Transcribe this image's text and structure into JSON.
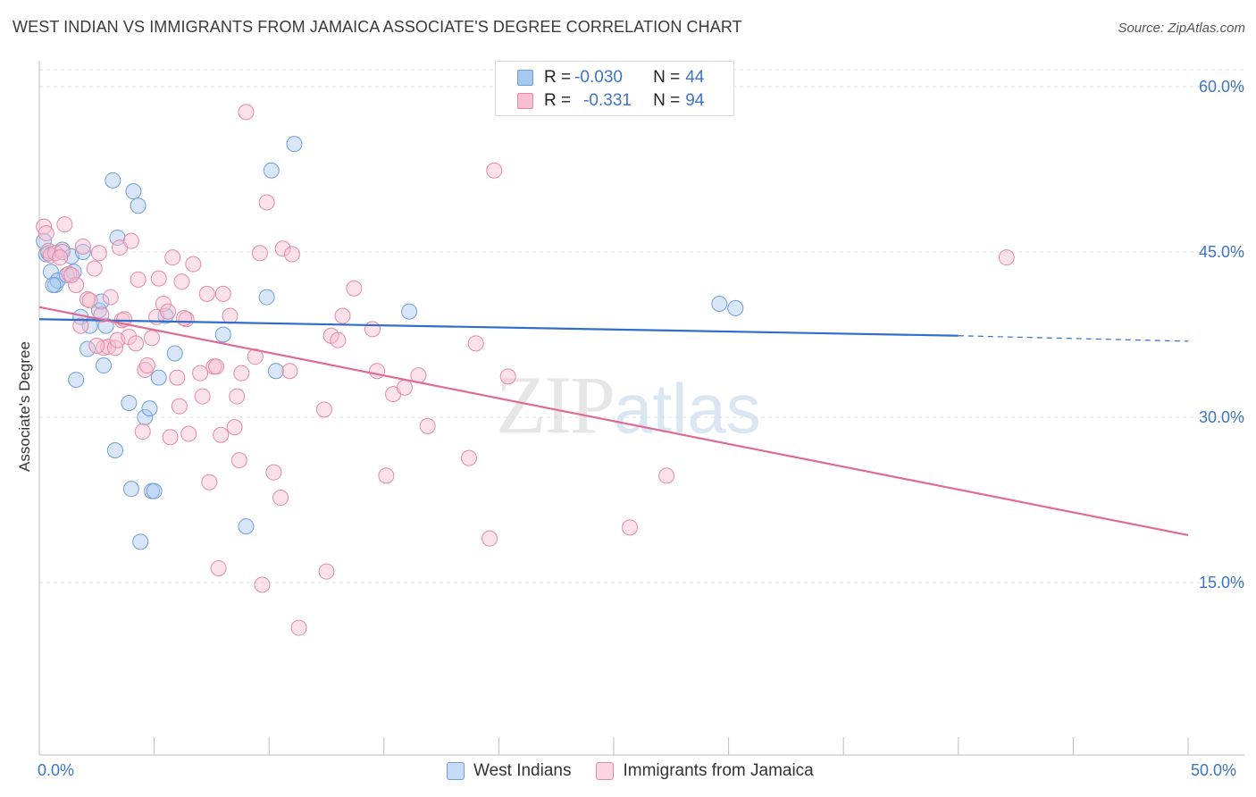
{
  "header": {
    "title": "WEST INDIAN VS IMMIGRANTS FROM JAMAICA ASSOCIATE'S DEGREE CORRELATION CHART",
    "source": "Source: ZipAtlas.com"
  },
  "watermark": {
    "zip": "ZIP",
    "atlas": "atlas"
  },
  "legend": {
    "rows": [
      {
        "r_label": "R = ",
        "r_value": "-0.030",
        "n_label": "N = ",
        "n_value": "44",
        "color": "#a9c8ef",
        "border": "#6f9fd8"
      },
      {
        "r_label": "R = ",
        "r_value": "-0.331",
        "n_label": "N = ",
        "n_value": "94",
        "color": "#f7bfd0",
        "border": "#e48aa7"
      }
    ]
  },
  "bottom_legend": {
    "west_indians": "West Indians",
    "jamaica": "Immigrants from Jamaica"
  },
  "chart_data": {
    "type": "scatter",
    "title": "WEST INDIAN VS IMMIGRANTS FROM JAMAICA ASSOCIATE'S DEGREE CORRELATION CHART",
    "xlabel": "",
    "ylabel": "Associate's Degree",
    "xlim": [
      0,
      50
    ],
    "ylim": [
      0,
      62
    ],
    "x_tick_labels": [
      "0.0%",
      "50.0%"
    ],
    "y_ticks": [
      15,
      30,
      45,
      60
    ],
    "y_tick_labels": [
      "15.0%",
      "30.0%",
      "45.0%",
      "60.0%"
    ],
    "grid": true,
    "legend_position": "top-center",
    "series": [
      {
        "name": "West Indians",
        "color": "#a9c8ef",
        "stroke": "#6f9fd8",
        "trend": {
          "x": [
            0,
            40
          ],
          "y": [
            38.9,
            37.4
          ],
          "extended_to": [
            50,
            36.9
          ],
          "color": "#2f6fcc"
        },
        "points": [
          [
            0.2,
            46.0
          ],
          [
            0.3,
            44.8
          ],
          [
            0.5,
            43.2
          ],
          [
            0.7,
            42.0
          ],
          [
            0.8,
            42.4
          ],
          [
            1.0,
            45.2
          ],
          [
            1.2,
            42.9
          ],
          [
            1.4,
            44.6
          ],
          [
            1.5,
            43.2
          ],
          [
            1.6,
            33.4
          ],
          [
            1.8,
            39.1
          ],
          [
            1.9,
            45.0
          ],
          [
            2.1,
            36.2
          ],
          [
            2.2,
            38.3
          ],
          [
            2.6,
            39.7
          ],
          [
            2.7,
            40.5
          ],
          [
            2.8,
            34.7
          ],
          [
            2.9,
            38.3
          ],
          [
            3.2,
            51.5
          ],
          [
            3.3,
            27.0
          ],
          [
            3.4,
            46.3
          ],
          [
            3.9,
            31.3
          ],
          [
            4.0,
            23.5
          ],
          [
            4.1,
            50.5
          ],
          [
            4.3,
            49.2
          ],
          [
            4.4,
            18.7
          ],
          [
            4.6,
            30.0
          ],
          [
            4.8,
            30.8
          ],
          [
            4.9,
            23.3
          ],
          [
            5.0,
            23.3
          ],
          [
            5.2,
            33.6
          ],
          [
            5.5,
            39.2
          ],
          [
            5.9,
            35.8
          ],
          [
            8.0,
            37.5
          ],
          [
            9.0,
            20.1
          ],
          [
            9.9,
            40.9
          ],
          [
            10.3,
            34.2
          ],
          [
            10.1,
            52.4
          ],
          [
            11.1,
            54.8
          ],
          [
            16.1,
            39.6
          ],
          [
            29.6,
            40.3
          ],
          [
            30.3,
            39.9
          ],
          [
            0.4,
            44.9
          ],
          [
            0.6,
            42.0
          ]
        ]
      },
      {
        "name": "Immigrants from Jamaica",
        "color": "#f7bfd0",
        "stroke": "#e48aa7",
        "trend": {
          "x": [
            0,
            50
          ],
          "y": [
            40.0,
            19.3
          ],
          "color": "#e06b95"
        },
        "points": [
          [
            0.2,
            47.3
          ],
          [
            0.3,
            46.7
          ],
          [
            0.4,
            45.1
          ],
          [
            0.5,
            44.7
          ],
          [
            0.7,
            44.9
          ],
          [
            1.1,
            47.5
          ],
          [
            1.3,
            43.0
          ],
          [
            1.6,
            42.0
          ],
          [
            1.8,
            38.3
          ],
          [
            1.9,
            45.5
          ],
          [
            2.1,
            40.7
          ],
          [
            2.2,
            40.6
          ],
          [
            2.4,
            43.5
          ],
          [
            2.6,
            44.9
          ],
          [
            2.7,
            39.3
          ],
          [
            2.8,
            36.3
          ],
          [
            3.0,
            36.4
          ],
          [
            3.1,
            40.9
          ],
          [
            3.3,
            36.3
          ],
          [
            3.4,
            37.0
          ],
          [
            3.5,
            45.4
          ],
          [
            3.6,
            38.8
          ],
          [
            3.9,
            37.3
          ],
          [
            4.0,
            46.0
          ],
          [
            4.2,
            36.7
          ],
          [
            4.3,
            42.5
          ],
          [
            4.5,
            28.7
          ],
          [
            4.6,
            34.3
          ],
          [
            4.7,
            34.7
          ],
          [
            5.1,
            39.1
          ],
          [
            5.2,
            42.6
          ],
          [
            5.4,
            40.3
          ],
          [
            5.6,
            39.6
          ],
          [
            5.7,
            28.2
          ],
          [
            5.8,
            44.5
          ],
          [
            6.0,
            33.6
          ],
          [
            6.1,
            31.0
          ],
          [
            6.2,
            42.3
          ],
          [
            6.4,
            38.9
          ],
          [
            6.5,
            28.5
          ],
          [
            6.7,
            43.9
          ],
          [
            7.0,
            34.0
          ],
          [
            7.1,
            31.9
          ],
          [
            7.3,
            41.2
          ],
          [
            7.4,
            24.1
          ],
          [
            7.6,
            34.6
          ],
          [
            7.7,
            34.6
          ],
          [
            7.8,
            16.3
          ],
          [
            7.9,
            28.4
          ],
          [
            8.0,
            41.2
          ],
          [
            8.3,
            39.2
          ],
          [
            8.5,
            29.1
          ],
          [
            8.6,
            31.9
          ],
          [
            8.7,
            26.1
          ],
          [
            9.0,
            57.7
          ],
          [
            9.4,
            35.5
          ],
          [
            9.6,
            44.9
          ],
          [
            9.7,
            14.8
          ],
          [
            9.9,
            49.5
          ],
          [
            10.2,
            25.0
          ],
          [
            10.5,
            22.7
          ],
          [
            10.6,
            45.3
          ],
          [
            10.9,
            34.2
          ],
          [
            11.0,
            44.8
          ],
          [
            11.3,
            10.9
          ],
          [
            12.4,
            30.7
          ],
          [
            12.5,
            16.0
          ],
          [
            12.7,
            37.4
          ],
          [
            13.2,
            39.2
          ],
          [
            13.7,
            41.7
          ],
          [
            14.5,
            38.0
          ],
          [
            14.7,
            34.2
          ],
          [
            15.1,
            24.7
          ],
          [
            15.4,
            32.1
          ],
          [
            15.9,
            32.7
          ],
          [
            16.5,
            33.8
          ],
          [
            16.9,
            29.2
          ],
          [
            18.7,
            26.3
          ],
          [
            19.0,
            36.7
          ],
          [
            19.6,
            19.0
          ],
          [
            19.8,
            52.4
          ],
          [
            20.4,
            33.7
          ],
          [
            25.7,
            20.0
          ],
          [
            27.3,
            24.7
          ],
          [
            42.1,
            44.5
          ],
          [
            6.3,
            39.0
          ],
          [
            13.0,
            37.0
          ],
          [
            4.9,
            37.2
          ],
          [
            2.5,
            36.5
          ],
          [
            8.8,
            34.0
          ],
          [
            3.7,
            38.9
          ],
          [
            1.0,
            45.0
          ],
          [
            0.9,
            44.5
          ],
          [
            1.4,
            42.9
          ]
        ]
      }
    ]
  }
}
